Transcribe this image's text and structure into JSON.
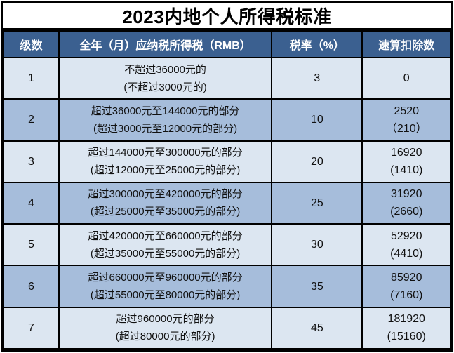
{
  "title": "2023内地个人所得税标准",
  "colors": {
    "header_bg": "#3B6090",
    "row_light": "#DCE6F1",
    "row_dark": "#A6BDDB",
    "border": "#000000",
    "header_text": "#FFFFFF",
    "body_text": "#111111"
  },
  "chart_data": {
    "type": "table",
    "title": "2023内地个人所得税标准",
    "columns": [
      "级数",
      "全年（月）应纳税所得税（RMB）",
      "税率（%）",
      "速算扣除数"
    ],
    "rows": [
      {
        "level": "1",
        "annual": "不超过36000元的",
        "monthly": "(不超过3000元的)",
        "rate": "3",
        "deduction": "0",
        "deduction_monthly": ""
      },
      {
        "level": "2",
        "annual": "超过36000元至144000元的部分",
        "monthly": "(超过3000元至12000元的部分)",
        "rate": "10",
        "deduction": "2520",
        "deduction_monthly": "（210）"
      },
      {
        "level": "3",
        "annual": "超过144000元至300000元的部分",
        "monthly": "(超过12000元至25000元的部分)",
        "rate": "20",
        "deduction": "16920",
        "deduction_monthly": "(1410)"
      },
      {
        "level": "4",
        "annual": "超过300000元至420000元的部分",
        "monthly": "(超过25000元至35000元的部分)",
        "rate": "25",
        "deduction": "31920",
        "deduction_monthly": "(2660)"
      },
      {
        "level": "5",
        "annual": "超过420000元至660000元的部分",
        "monthly": "(超过35000元至55000元的部分)",
        "rate": "30",
        "deduction": "52920",
        "deduction_monthly": "(4410)"
      },
      {
        "level": "6",
        "annual": "超过660000元至960000元的部分",
        "monthly": "(超过55000元至80000元的部分)",
        "rate": "35",
        "deduction": "85920",
        "deduction_monthly": "(7160)"
      },
      {
        "level": "7",
        "annual": "超过960000元的部分",
        "monthly": "(超过80000元的部分)",
        "rate": "45",
        "deduction": "181920",
        "deduction_monthly": "(15160)"
      }
    ]
  }
}
